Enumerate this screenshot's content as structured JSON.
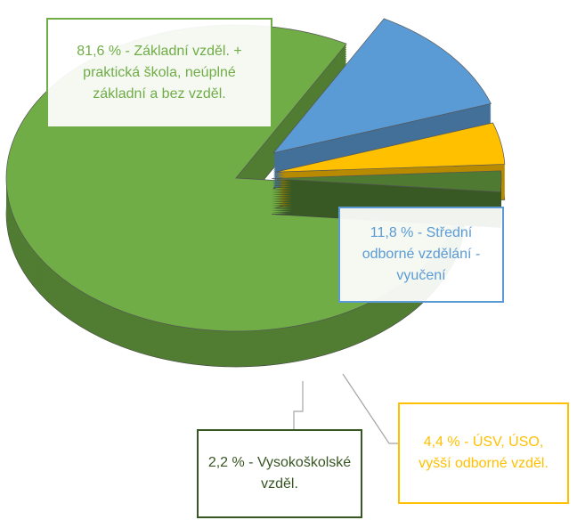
{
  "chart_data": {
    "type": "pie3d",
    "values": [
      81.6,
      11.8,
      4.4,
      2.2
    ],
    "value_labels": [
      "81,6 % - Základní vzděl. + praktická škola, neúplné základní a bez vzděl.",
      "11,8 % - Střední odborné vzdělání - vyučení",
      "4,4 % - ÚSV, ÚSO, vyšší odborné vzděl.",
      "2,2 % - Vysokoškolské vzděl."
    ],
    "colors": [
      "#70ad47",
      "#5b9bd5",
      "#ffc000",
      "#4e7a32"
    ],
    "label_text_colors": [
      "#70ad47",
      "#5b9bd5",
      "#ffc000",
      "#375623"
    ]
  }
}
